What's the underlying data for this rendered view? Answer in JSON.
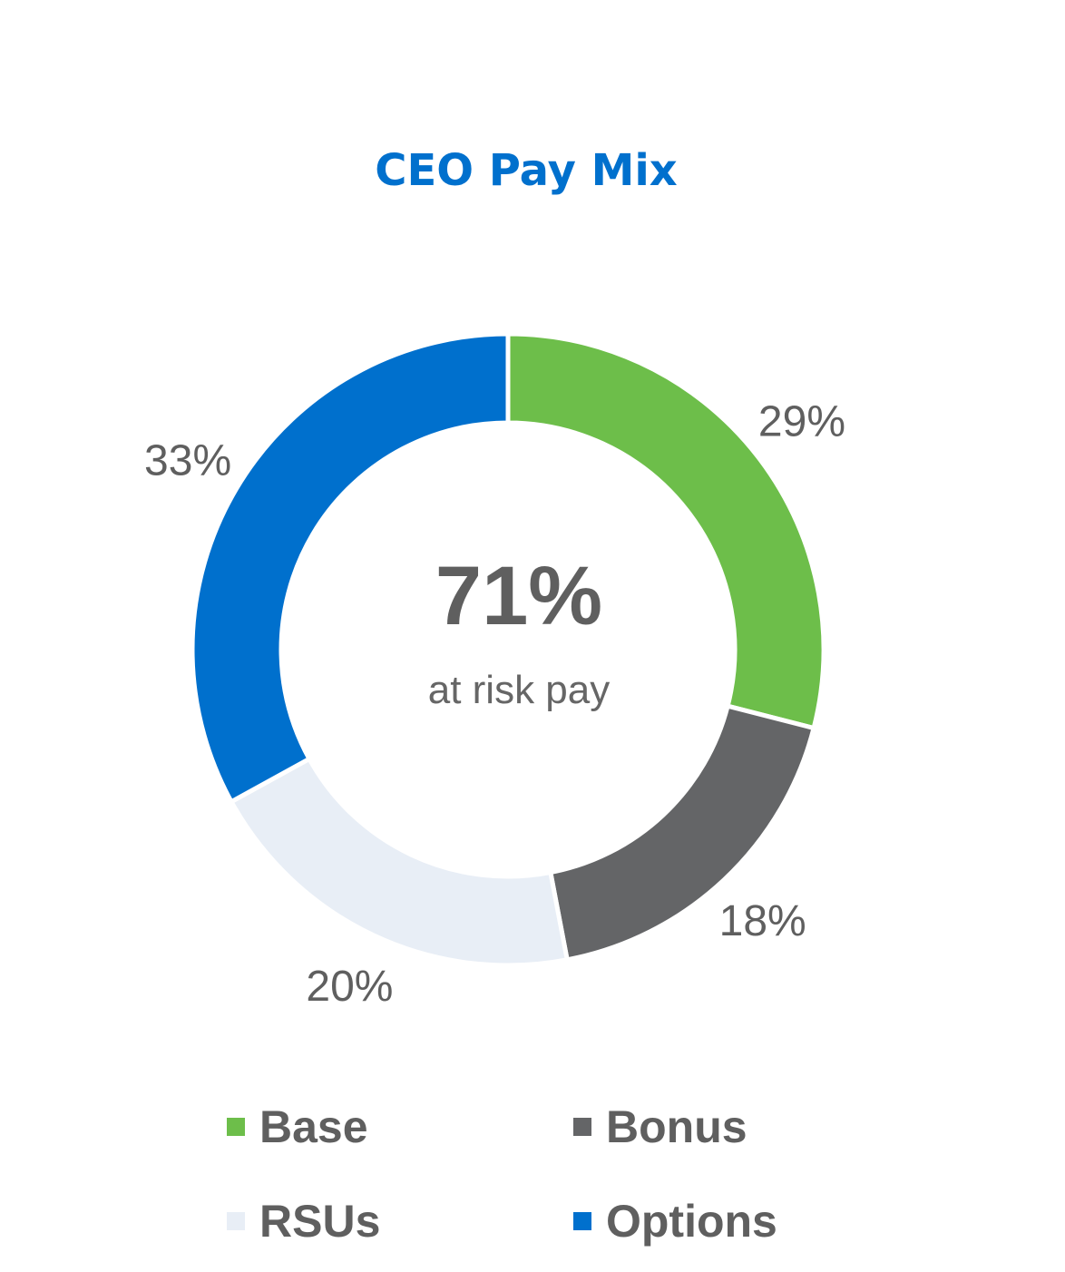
{
  "chart_data": {
    "type": "pie",
    "donut": true,
    "title": "CEO Pay Mix",
    "center_value": "71%",
    "center_label": "at risk pay",
    "categories": [
      "Base",
      "Bonus",
      "RSUs",
      "Options"
    ],
    "values": [
      29,
      18,
      20,
      33
    ],
    "labels": [
      "29%",
      "18%",
      "20%",
      "33%"
    ],
    "colors": [
      "#6DBE4A",
      "#646567",
      "#E8EEF6",
      "#0070CD"
    ],
    "legend_position": "bottom"
  }
}
